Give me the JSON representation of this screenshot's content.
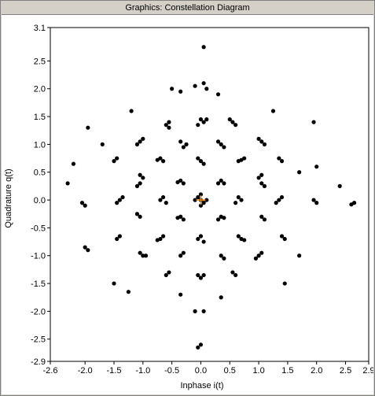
{
  "window": {
    "title": "Graphics: Constellation Diagram"
  },
  "chart_data": {
    "type": "scatter",
    "title": "",
    "xlabel": "Inphase i(t)",
    "ylabel": "Quadrature q(t)",
    "xlim": [
      -2.6,
      2.9
    ],
    "ylim": [
      -2.9,
      3.1
    ],
    "xticks": [
      "-2.6",
      "-2.0",
      "-1.5",
      "-1.0",
      "-0.5",
      "0.0",
      "0.5",
      "1.0",
      "1.5",
      "2.0",
      "2.5",
      "2.9"
    ],
    "xtick_values": [
      -2.6,
      -2.0,
      -1.5,
      -1.0,
      -0.5,
      0.0,
      0.5,
      1.0,
      1.5,
      2.0,
      2.5,
      2.9
    ],
    "yticks": [
      "3.1",
      "2.5",
      "2.0",
      "1.5",
      "1.0",
      "0.5",
      "0.0",
      "-0.5",
      "-1.0",
      "-1.5",
      "-2.0",
      "-2.5",
      "-2.9"
    ],
    "ytick_values": [
      3.1,
      2.5,
      2.0,
      1.5,
      1.0,
      0.5,
      0.0,
      -0.5,
      -1.0,
      -1.5,
      -2.0,
      -2.5,
      -2.9
    ],
    "grid": true,
    "point_color": "#000000",
    "origin_marker_color": "#ff8c00",
    "points": [
      [
        0.05,
        2.75
      ],
      [
        -0.1,
        2.05
      ],
      [
        0.05,
        2.1
      ],
      [
        0.1,
        2.0
      ],
      [
        -0.35,
        1.95
      ],
      [
        -0.5,
        2.0
      ],
      [
        0.3,
        1.9
      ],
      [
        0.0,
        1.45
      ],
      [
        0.05,
        1.4
      ],
      [
        -0.05,
        1.35
      ],
      [
        0.1,
        1.45
      ],
      [
        -0.55,
        1.4
      ],
      [
        -0.6,
        1.35
      ],
      [
        -0.55,
        1.3
      ],
      [
        0.55,
        1.4
      ],
      [
        0.6,
        1.35
      ],
      [
        0.5,
        1.45
      ],
      [
        -1.05,
        1.05
      ],
      [
        -1.1,
        1.0
      ],
      [
        -1.0,
        1.1
      ],
      [
        1.05,
        1.05
      ],
      [
        1.1,
        1.0
      ],
      [
        1.0,
        1.1
      ],
      [
        -0.35,
        1.05
      ],
      [
        -0.25,
        1.0
      ],
      [
        -0.3,
        0.95
      ],
      [
        0.35,
        1.0
      ],
      [
        0.4,
        0.95
      ],
      [
        0.3,
        1.05
      ],
      [
        -0.7,
        0.75
      ],
      [
        -0.65,
        0.7
      ],
      [
        -0.75,
        0.72
      ],
      [
        0.75,
        0.75
      ],
      [
        0.7,
        0.72
      ],
      [
        0.65,
        0.7
      ],
      [
        -0.05,
        0.75
      ],
      [
        0.0,
        0.7
      ],
      [
        0.05,
        0.65
      ],
      [
        -1.45,
        0.75
      ],
      [
        -1.5,
        0.7
      ],
      [
        1.35,
        0.75
      ],
      [
        1.4,
        0.7
      ],
      [
        -1.05,
        0.45
      ],
      [
        -1.0,
        0.4
      ],
      [
        1.0,
        0.4
      ],
      [
        1.05,
        0.45
      ],
      [
        -0.35,
        0.35
      ],
      [
        -0.3,
        0.3
      ],
      [
        -0.4,
        0.32
      ],
      [
        0.35,
        0.35
      ],
      [
        0.3,
        0.3
      ],
      [
        0.4,
        0.3
      ],
      [
        -1.05,
        0.3
      ],
      [
        -1.1,
        0.25
      ],
      [
        1.05,
        0.3
      ],
      [
        1.1,
        0.25
      ],
      [
        -0.65,
        0.05
      ],
      [
        -0.7,
        0.0
      ],
      [
        -0.6,
        -0.05
      ],
      [
        0.65,
        0.05
      ],
      [
        0.7,
        0.0
      ],
      [
        0.6,
        -0.05
      ],
      [
        -0.05,
        0.05
      ],
      [
        0.0,
        0.0
      ],
      [
        0.05,
        -0.05
      ],
      [
        -0.1,
        0.0
      ],
      [
        0.1,
        0.0
      ],
      [
        0.0,
        0.1
      ],
      [
        0.0,
        -0.1
      ],
      [
        -1.4,
        0.0
      ],
      [
        -1.35,
        0.05
      ],
      [
        -1.45,
        -0.05
      ],
      [
        1.35,
        0.0
      ],
      [
        1.4,
        0.05
      ],
      [
        1.3,
        -0.05
      ],
      [
        -0.35,
        -0.3
      ],
      [
        -0.3,
        -0.35
      ],
      [
        -0.4,
        -0.32
      ],
      [
        0.35,
        -0.3
      ],
      [
        0.3,
        -0.35
      ],
      [
        0.4,
        -0.32
      ],
      [
        -1.05,
        -0.3
      ],
      [
        -1.1,
        -0.25
      ],
      [
        1.05,
        -0.3
      ],
      [
        1.1,
        -0.35
      ],
      [
        -0.7,
        -0.7
      ],
      [
        -0.65,
        -0.65
      ],
      [
        -0.75,
        -0.72
      ],
      [
        0.7,
        -0.7
      ],
      [
        0.65,
        -0.65
      ],
      [
        0.75,
        -0.72
      ],
      [
        -0.05,
        -0.7
      ],
      [
        0.0,
        -0.65
      ],
      [
        0.05,
        -0.75
      ],
      [
        -1.4,
        -0.65
      ],
      [
        -1.45,
        -0.7
      ],
      [
        1.4,
        -0.65
      ],
      [
        1.45,
        -0.7
      ],
      [
        -1.0,
        -1.0
      ],
      [
        -1.05,
        -0.95
      ],
      [
        -0.95,
        -1.0
      ],
      [
        1.0,
        -1.0
      ],
      [
        1.05,
        -0.95
      ],
      [
        0.95,
        -1.05
      ],
      [
        -0.35,
        -1.0
      ],
      [
        -0.3,
        -0.95
      ],
      [
        0.35,
        -1.0
      ],
      [
        0.4,
        -1.05
      ],
      [
        -0.6,
        -1.35
      ],
      [
        -0.55,
        -1.3
      ],
      [
        0.6,
        -1.35
      ],
      [
        0.55,
        -1.3
      ],
      [
        0.0,
        -1.4
      ],
      [
        0.05,
        -1.35
      ],
      [
        -0.05,
        -1.35
      ],
      [
        -0.35,
        -1.7
      ],
      [
        0.35,
        -1.75
      ],
      [
        -0.1,
        -2.0
      ],
      [
        0.05,
        -2.0
      ],
      [
        0.0,
        -2.6
      ],
      [
        -0.05,
        -2.65
      ],
      [
        -2.3,
        0.3
      ],
      [
        -2.05,
        -0.05
      ],
      [
        -2.0,
        -0.1
      ],
      [
        1.95,
        0.0
      ],
      [
        2.0,
        -0.05
      ],
      [
        2.65,
        -0.05
      ],
      [
        2.6,
        -0.08
      ],
      [
        -1.95,
        1.3
      ],
      [
        1.95,
        1.4
      ],
      [
        -2.0,
        -0.85
      ],
      [
        -1.95,
        -0.9
      ],
      [
        1.7,
        -1.0
      ],
      [
        -1.7,
        1.0
      ],
      [
        1.7,
        0.5
      ],
      [
        -1.2,
        1.6
      ],
      [
        1.25,
        1.6
      ],
      [
        -1.5,
        -1.5
      ],
      [
        1.45,
        -1.5
      ],
      [
        -1.25,
        -1.65
      ],
      [
        2.4,
        0.25
      ],
      [
        -2.2,
        0.65
      ],
      [
        2.0,
        0.6
      ]
    ]
  }
}
